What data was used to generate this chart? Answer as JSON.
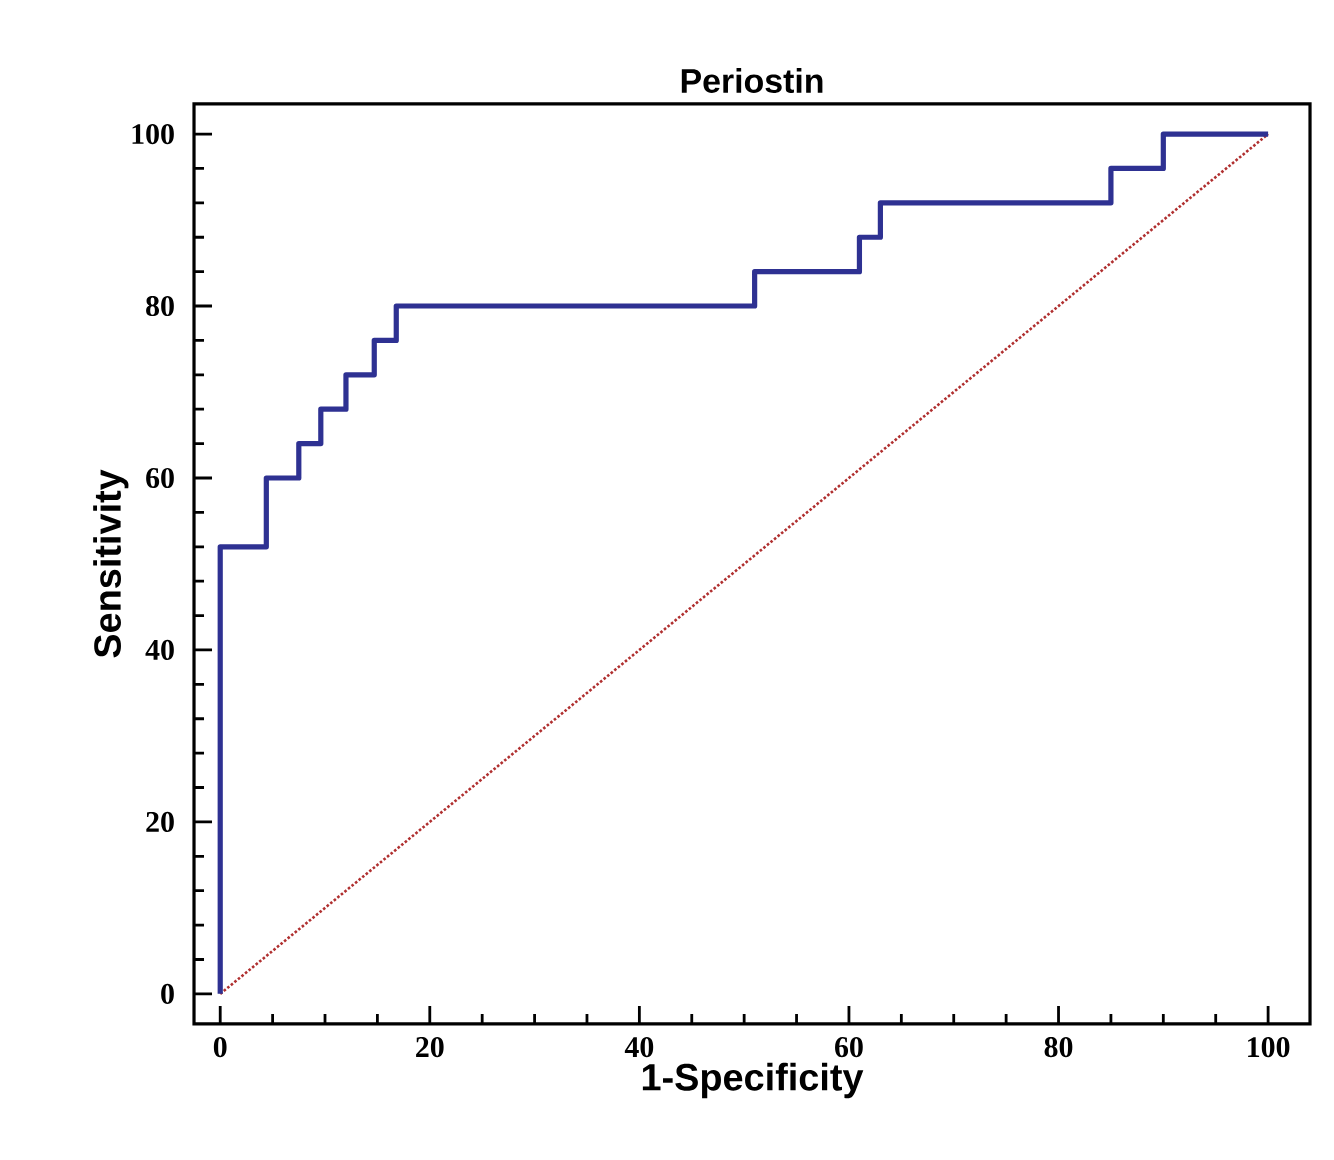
{
  "chart_data": {
    "type": "line",
    "title": "Periostin",
    "xlabel": "1-Specificity",
    "ylabel": "Sensitivity",
    "xlim": [
      -2.5,
      104
    ],
    "ylim": [
      -3.5,
      103.5
    ],
    "xticks": [
      0,
      20,
      40,
      60,
      80,
      100
    ],
    "yticks": [
      0,
      20,
      40,
      60,
      80,
      100
    ],
    "series": [
      {
        "color": "#2e3192",
        "x": [
          0,
          0,
          4.4,
          4.4,
          7.5,
          7.5,
          9.6,
          9.6,
          12,
          12,
          14.7,
          14.7,
          16.8,
          16.8,
          51,
          51,
          61,
          61,
          63,
          63,
          85,
          85,
          90,
          90,
          100
        ],
        "values": [
          0,
          52,
          52,
          60,
          60,
          64,
          64,
          68,
          68,
          72,
          72,
          76,
          76,
          80,
          80,
          84,
          84,
          88,
          88,
          92,
          92,
          96,
          96,
          100,
          100
        ]
      },
      {
        "color": "#b03030",
        "line_style": "dotted",
        "x": [
          0,
          100
        ],
        "values": [
          0,
          100
        ]
      }
    ]
  }
}
